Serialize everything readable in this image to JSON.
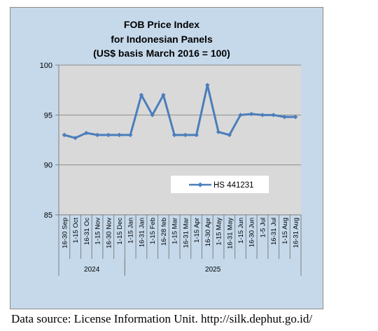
{
  "chart_data": {
    "type": "line",
    "title": [
      "FOB Price Index",
      "for Indonesian Panels",
      "(US$ basis March 2016 = 100)"
    ],
    "categories": [
      "16-30 Sep",
      "1-15 Oct",
      "16-31 Oc",
      "1-15 Nov",
      "16-30 Nov",
      "1-15 Dec",
      "1-15 Jan",
      "16-31 Jan",
      "1-15 Feb",
      "16-28 feb",
      "1-15 Mar",
      "16-31 Mar",
      "1-15 Apr",
      "16-30 Apr",
      "1-15 May",
      "16-31 May",
      "1-15 Jun",
      "16-30 Jun",
      "1-5 Jul",
      "16-31 Jul",
      "1-15 Aug",
      "16-31 Aug"
    ],
    "years": [
      {
        "label": "2024",
        "start": 0,
        "end": 5
      },
      {
        "label": "2025",
        "start": 6,
        "end": 21
      }
    ],
    "series": [
      {
        "name": "HS 441231",
        "color": "#4a7ebb",
        "values": [
          93.0,
          92.7,
          93.2,
          93.0,
          93.0,
          93.0,
          93.0,
          97.0,
          95.0,
          97.0,
          93.0,
          93.0,
          93.0,
          98.0,
          93.3,
          93.0,
          95.0,
          95.1,
          95.0,
          95.0,
          94.8,
          94.8
        ]
      }
    ],
    "ylim": [
      85,
      100
    ],
    "yticks": [
      "85",
      "90",
      "95",
      "100"
    ],
    "grid": true,
    "legend": "inside-center-right"
  },
  "source_text": "Data source: License Information Unit. http://silk.dephut.go.id/"
}
